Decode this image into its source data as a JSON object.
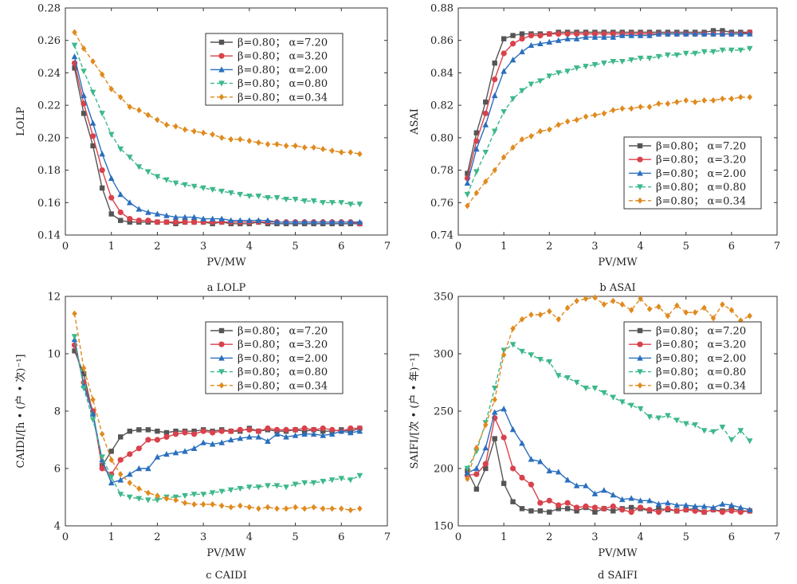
{
  "chart_data": [
    {
      "type": "line",
      "caption": "a  LOLP",
      "xlabel": "PV/MW",
      "ylabel": "LOLP",
      "xlim": [
        0,
        7
      ],
      "ylim": [
        0.14,
        0.28
      ],
      "xticks": [
        "0",
        "1",
        "2",
        "3",
        "4",
        "5",
        "6",
        "7"
      ],
      "yticks": [
        "0.14",
        "0.16",
        "0.18",
        "0.20",
        "0.22",
        "0.24",
        "0.26",
        "0.28"
      ],
      "legend_position": "top-right",
      "x": [
        0.2,
        0.4,
        0.6,
        0.8,
        1.0,
        1.2,
        1.4,
        1.6,
        1.8,
        2.0,
        2.2,
        2.4,
        2.6,
        2.8,
        3.0,
        3.2,
        3.4,
        3.6,
        3.8,
        4.0,
        4.2,
        4.4,
        4.6,
        4.8,
        5.0,
        5.2,
        5.4,
        5.6,
        5.8,
        6.0,
        6.2,
        6.4
      ],
      "series": [
        {
          "name": "β=0.80； α=7.20",
          "color": "#555555",
          "dashed": false,
          "marker": "square",
          "values": [
            0.243,
            0.215,
            0.195,
            0.169,
            0.153,
            0.149,
            0.148,
            0.148,
            0.148,
            0.148,
            0.148,
            0.147,
            0.148,
            0.148,
            0.148,
            0.147,
            0.148,
            0.147,
            0.147,
            0.147,
            0.148,
            0.147,
            0.147,
            0.147,
            0.147,
            0.147,
            0.147,
            0.147,
            0.147,
            0.147,
            0.147,
            0.147
          ]
        },
        {
          "name": "β=0.80； α=3.20",
          "color": "#d9414b",
          "dashed": false,
          "marker": "circle",
          "values": [
            0.246,
            0.221,
            0.201,
            0.18,
            0.163,
            0.154,
            0.15,
            0.149,
            0.149,
            0.148,
            0.148,
            0.148,
            0.148,
            0.148,
            0.148,
            0.148,
            0.148,
            0.148,
            0.148,
            0.148,
            0.148,
            0.148,
            0.148,
            0.148,
            0.148,
            0.148,
            0.148,
            0.148,
            0.148,
            0.148,
            0.148,
            0.147
          ]
        },
        {
          "name": "β=0.80； α=2.00",
          "color": "#2a6fbe",
          "dashed": false,
          "marker": "triangle",
          "values": [
            0.25,
            0.226,
            0.209,
            0.19,
            0.175,
            0.165,
            0.16,
            0.156,
            0.154,
            0.153,
            0.152,
            0.151,
            0.151,
            0.151,
            0.15,
            0.15,
            0.15,
            0.149,
            0.149,
            0.149,
            0.149,
            0.149,
            0.148,
            0.148,
            0.148,
            0.148,
            0.148,
            0.148,
            0.148,
            0.148,
            0.148,
            0.148
          ]
        },
        {
          "name": "β=0.80； α=0.80",
          "color": "#3db88a",
          "dashed": true,
          "marker": "triangle-down",
          "values": [
            0.257,
            0.241,
            0.228,
            0.215,
            0.202,
            0.193,
            0.188,
            0.182,
            0.179,
            0.176,
            0.174,
            0.172,
            0.171,
            0.17,
            0.169,
            0.168,
            0.167,
            0.166,
            0.165,
            0.164,
            0.164,
            0.163,
            0.163,
            0.162,
            0.162,
            0.161,
            0.161,
            0.16,
            0.16,
            0.16,
            0.159,
            0.159
          ]
        },
        {
          "name": "β=0.80； α=0.34",
          "color": "#e08a1e",
          "dashed": true,
          "marker": "diamond",
          "values": [
            0.265,
            0.255,
            0.247,
            0.239,
            0.23,
            0.225,
            0.219,
            0.217,
            0.214,
            0.211,
            0.208,
            0.207,
            0.205,
            0.204,
            0.203,
            0.202,
            0.2,
            0.199,
            0.199,
            0.198,
            0.197,
            0.196,
            0.196,
            0.195,
            0.195,
            0.194,
            0.194,
            0.193,
            0.192,
            0.191,
            0.191,
            0.19
          ]
        }
      ]
    },
    {
      "type": "line",
      "caption": "b  ASAI",
      "xlabel": "PV/MW",
      "ylabel": "ASAI",
      "xlim": [
        0,
        7
      ],
      "ylim": [
        0.74,
        0.88
      ],
      "xticks": [
        "0",
        "1",
        "2",
        "3",
        "4",
        "5",
        "6",
        "7"
      ],
      "yticks": [
        "0.74",
        "0.76",
        "0.78",
        "0.80",
        "0.82",
        "0.84",
        "0.86",
        "0.88"
      ],
      "legend_position": "bottom-right",
      "x": [
        0.2,
        0.4,
        0.6,
        0.8,
        1.0,
        1.2,
        1.4,
        1.6,
        1.8,
        2.0,
        2.2,
        2.4,
        2.6,
        2.8,
        3.0,
        3.2,
        3.4,
        3.6,
        3.8,
        4.0,
        4.2,
        4.4,
        4.6,
        4.8,
        5.0,
        5.2,
        5.4,
        5.6,
        5.8,
        6.0,
        6.2,
        6.4
      ],
      "series": [
        {
          "name": "β=0.80； α=7.20",
          "color": "#555555",
          "dashed": false,
          "marker": "square",
          "values": [
            0.778,
            0.803,
            0.822,
            0.846,
            0.861,
            0.863,
            0.864,
            0.864,
            0.864,
            0.864,
            0.865,
            0.865,
            0.865,
            0.865,
            0.865,
            0.865,
            0.865,
            0.865,
            0.865,
            0.865,
            0.865,
            0.865,
            0.865,
            0.865,
            0.865,
            0.865,
            0.865,
            0.866,
            0.866,
            0.865,
            0.865,
            0.865
          ]
        },
        {
          "name": "β=0.80； α=3.20",
          "color": "#d9414b",
          "dashed": false,
          "marker": "circle",
          "values": [
            0.775,
            0.798,
            0.815,
            0.836,
            0.852,
            0.858,
            0.861,
            0.863,
            0.863,
            0.864,
            0.864,
            0.864,
            0.864,
            0.864,
            0.864,
            0.864,
            0.864,
            0.864,
            0.864,
            0.864,
            0.864,
            0.864,
            0.864,
            0.864,
            0.864,
            0.864,
            0.864,
            0.864,
            0.864,
            0.864,
            0.864,
            0.865
          ]
        },
        {
          "name": "β=0.80； α=2.00",
          "color": "#2a6fbe",
          "dashed": false,
          "marker": "triangle",
          "values": [
            0.772,
            0.793,
            0.808,
            0.826,
            0.841,
            0.848,
            0.853,
            0.857,
            0.858,
            0.859,
            0.86,
            0.861,
            0.861,
            0.862,
            0.862,
            0.862,
            0.862,
            0.863,
            0.863,
            0.863,
            0.863,
            0.864,
            0.864,
            0.864,
            0.864,
            0.864,
            0.864,
            0.864,
            0.864,
            0.864,
            0.864,
            0.864
          ]
        },
        {
          "name": "β=0.80； α=0.80",
          "color": "#3db88a",
          "dashed": true,
          "marker": "triangle-down",
          "values": [
            0.765,
            0.779,
            0.791,
            0.804,
            0.816,
            0.824,
            0.829,
            0.833,
            0.835,
            0.838,
            0.84,
            0.841,
            0.843,
            0.844,
            0.845,
            0.846,
            0.847,
            0.847,
            0.848,
            0.849,
            0.849,
            0.85,
            0.851,
            0.851,
            0.852,
            0.852,
            0.853,
            0.853,
            0.854,
            0.854,
            0.854,
            0.855
          ]
        },
        {
          "name": "β=0.80； α=0.34",
          "color": "#e08a1e",
          "dashed": true,
          "marker": "diamond",
          "values": [
            0.758,
            0.766,
            0.773,
            0.78,
            0.788,
            0.794,
            0.799,
            0.801,
            0.804,
            0.805,
            0.808,
            0.81,
            0.811,
            0.813,
            0.814,
            0.815,
            0.817,
            0.818,
            0.818,
            0.819,
            0.819,
            0.821,
            0.821,
            0.822,
            0.823,
            0.822,
            0.823,
            0.823,
            0.824,
            0.824,
            0.825,
            0.825
          ]
        }
      ]
    },
    {
      "type": "line",
      "caption": "c  CAIDI",
      "xlabel": "PV/MW",
      "ylabel": "CAIDI/[h • (户 • 次)⁻¹]",
      "xlim": [
        0,
        7
      ],
      "ylim": [
        4,
        12
      ],
      "xticks": [
        "0",
        "1",
        "2",
        "3",
        "4",
        "5",
        "6",
        "7"
      ],
      "yticks": [
        "4",
        "6",
        "8",
        "10",
        "12"
      ],
      "legend_position": "top-right",
      "x": [
        0.2,
        0.4,
        0.6,
        0.8,
        1.0,
        1.2,
        1.4,
        1.6,
        1.8,
        2.0,
        2.2,
        2.4,
        2.6,
        2.8,
        3.0,
        3.2,
        3.4,
        3.6,
        3.8,
        4.0,
        4.2,
        4.4,
        4.6,
        4.8,
        5.0,
        5.2,
        5.4,
        5.6,
        5.8,
        6.0,
        6.2,
        6.4
      ],
      "series": [
        {
          "name": "β=0.80； α=7.20",
          "color": "#555555",
          "dashed": false,
          "marker": "square",
          "values": [
            10.1,
            9.3,
            7.9,
            6.1,
            6.6,
            7.1,
            7.3,
            7.35,
            7.35,
            7.3,
            7.25,
            7.3,
            7.3,
            7.3,
            7.35,
            7.3,
            7.35,
            7.3,
            7.3,
            7.4,
            7.3,
            7.35,
            7.3,
            7.3,
            7.35,
            7.3,
            7.35,
            7.3,
            7.3,
            7.35,
            7.3,
            7.4
          ]
        },
        {
          "name": "β=0.80； α=3.20",
          "color": "#d9414b",
          "dashed": false,
          "marker": "circle",
          "values": [
            10.3,
            9.0,
            8.0,
            6.0,
            5.8,
            6.3,
            6.5,
            6.7,
            7.0,
            7.0,
            7.1,
            7.2,
            7.25,
            7.2,
            7.3,
            7.25,
            7.3,
            7.3,
            7.35,
            7.35,
            7.3,
            7.4,
            7.35,
            7.35,
            7.35,
            7.4,
            7.35,
            7.4,
            7.35,
            7.3,
            7.4,
            7.4
          ]
        },
        {
          "name": "β=0.80； α=2.00",
          "color": "#2a6fbe",
          "dashed": false,
          "marker": "triangle",
          "values": [
            10.5,
            8.9,
            7.9,
            6.3,
            5.5,
            5.6,
            5.8,
            6.0,
            6.0,
            6.4,
            6.5,
            6.55,
            6.6,
            6.7,
            6.9,
            6.85,
            6.9,
            7.0,
            7.05,
            7.1,
            7.1,
            6.95,
            7.2,
            7.1,
            7.15,
            7.2,
            7.2,
            7.15,
            7.2,
            7.3,
            7.25,
            7.3
          ]
        },
        {
          "name": "β=0.80； α=0.80",
          "color": "#3db88a",
          "dashed": true,
          "marker": "triangle-down",
          "values": [
            10.6,
            8.8,
            7.7,
            6.4,
            5.7,
            5.1,
            5.0,
            4.95,
            4.9,
            4.9,
            5.0,
            5.0,
            5.05,
            5.1,
            5.1,
            5.15,
            5.2,
            5.25,
            5.3,
            5.35,
            5.35,
            5.4,
            5.4,
            5.35,
            5.45,
            5.5,
            5.5,
            5.55,
            5.6,
            5.65,
            5.6,
            5.75
          ]
        },
        {
          "name": "β=0.80； α=0.34",
          "color": "#e08a1e",
          "dashed": true,
          "marker": "diamond",
          "values": [
            11.4,
            9.5,
            8.4,
            7.2,
            6.3,
            5.8,
            5.5,
            5.3,
            5.15,
            5.05,
            4.95,
            4.9,
            4.8,
            4.75,
            4.75,
            4.75,
            4.7,
            4.65,
            4.7,
            4.65,
            4.6,
            4.65,
            4.6,
            4.6,
            4.65,
            4.6,
            4.65,
            4.6,
            4.6,
            4.6,
            4.55,
            4.6
          ]
        }
      ]
    },
    {
      "type": "line",
      "caption": "d  SAIFI",
      "xlabel": "PV/MW",
      "ylabel": "SAIFI/[次 • (户 • 年)⁻¹]",
      "xlim": [
        0,
        7
      ],
      "ylim": [
        150,
        350
      ],
      "xticks": [
        "0",
        "1",
        "2",
        "3",
        "4",
        "5",
        "6",
        "7"
      ],
      "yticks": [
        "150",
        "200",
        "250",
        "300",
        "350"
      ],
      "legend_position": "top-right",
      "x": [
        0.2,
        0.4,
        0.6,
        0.8,
        1.0,
        1.2,
        1.4,
        1.6,
        1.8,
        2.0,
        2.2,
        2.4,
        2.6,
        2.8,
        3.0,
        3.2,
        3.4,
        3.6,
        3.8,
        4.0,
        4.2,
        4.4,
        4.6,
        4.8,
        5.0,
        5.2,
        5.4,
        5.6,
        5.8,
        6.0,
        6.2,
        6.4
      ],
      "series": [
        {
          "name": "β=0.80； α=7.20",
          "color": "#555555",
          "dashed": false,
          "marker": "square",
          "values": [
            198,
            182,
            200,
            226,
            187,
            171,
            165,
            163,
            163,
            162,
            165,
            165,
            163,
            166,
            162,
            165,
            163,
            165,
            166,
            165,
            163,
            165,
            164,
            163,
            164,
            165,
            162,
            164,
            163,
            165,
            163,
            163
          ]
        },
        {
          "name": "β=0.80； α=3.20",
          "color": "#d9414b",
          "dashed": false,
          "marker": "circle",
          "values": [
            194,
            195,
            204,
            244,
            227,
            200,
            192,
            186,
            170,
            172,
            168,
            170,
            166,
            167,
            166,
            165,
            167,
            164,
            162,
            166,
            164,
            162,
            165,
            163,
            164,
            163,
            162,
            164,
            162,
            163,
            162,
            163
          ]
        },
        {
          "name": "β=0.80； α=2.00",
          "color": "#2a6fbe",
          "dashed": false,
          "marker": "triangle",
          "values": [
            196,
            200,
            218,
            249,
            252,
            234,
            222,
            208,
            206,
            198,
            197,
            190,
            185,
            185,
            178,
            181,
            177,
            173,
            174,
            172,
            172,
            169,
            170,
            168,
            168,
            167,
            167,
            166,
            169,
            168,
            166,
            164
          ]
        },
        {
          "name": "β=0.80； α=0.80",
          "color": "#3db88a",
          "dashed": true,
          "marker": "triangle-down",
          "values": [
            200,
            215,
            240,
            270,
            303,
            308,
            302,
            299,
            295,
            293,
            281,
            279,
            275,
            270,
            270,
            266,
            262,
            258,
            255,
            252,
            245,
            244,
            246,
            242,
            239,
            238,
            233,
            232,
            236,
            225,
            233,
            224
          ]
        },
        {
          "name": "β=0.80； α=0.34",
          "color": "#e08a1e",
          "dashed": true,
          "marker": "diamond",
          "values": [
            191,
            218,
            238,
            260,
            299,
            322,
            330,
            334,
            334,
            337,
            330,
            340,
            346,
            348,
            349,
            343,
            346,
            343,
            338,
            348,
            339,
            341,
            333,
            342,
            336,
            336,
            340,
            331,
            343,
            338,
            329,
            333
          ]
        }
      ]
    }
  ]
}
